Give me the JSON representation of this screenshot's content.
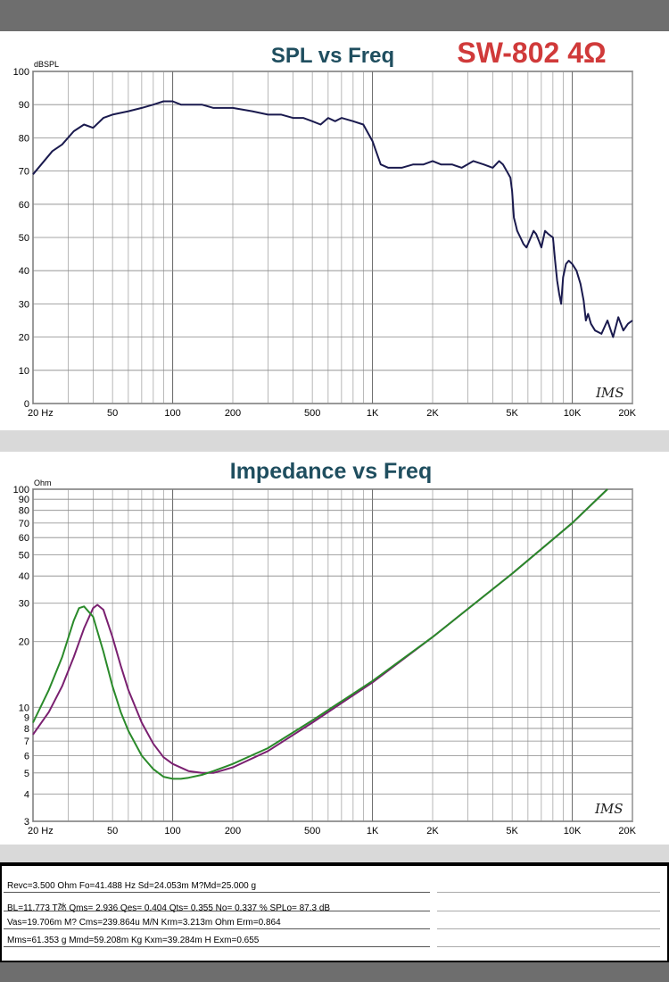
{
  "charts": {
    "spl": {
      "title": "SPL vs Freq",
      "model": "SW-802 4Ω",
      "unit": "dBSPL",
      "watermark": "IMS"
    },
    "impedance": {
      "title": "Impedance vs Freq",
      "unit": "Ohm",
      "watermark": "IMS"
    }
  },
  "params": {
    "line1": "Revc=3.500 Ohm  Fo=41.488 Hz  Sd=24.053m M?Md=25.000 g",
    "line2": "BL=11.773 T氹  Qms= 2.936  Qes= 0.404  Qts= 0.355  No= 0.337 %  SPLo= 87.3 dB",
    "line3": "Vas=19.706m M? Cms=239.864u M/N  Krm=3.213m Ohm  Erm=0.864",
    "line4": "Mms=61.353 g  Mmd=59.208m Kg  Kxm=39.284m H  Exm=0.655"
  },
  "colors": {
    "spl_curve": "#1a1a4e",
    "impedance_purple": "#7a2070",
    "impedance_green": "#2a8a2a",
    "title": "#1f4e5f",
    "model": "#d03a3a"
  },
  "chart_data": [
    {
      "type": "line",
      "title": "SPL vs Freq",
      "ylabel": "dBSPL",
      "xscale": "log",
      "xlim": [
        20,
        20000
      ],
      "ylim": [
        0,
        100
      ],
      "grid": true,
      "x_ticks": [
        "20 Hz",
        "50",
        "100",
        "200",
        "500",
        "1K",
        "2K",
        "5K",
        "10K",
        "20K"
      ],
      "y_ticks": [
        "0",
        "10",
        "20",
        "30",
        "40",
        "50",
        "60",
        "70",
        "80",
        "90",
        "100"
      ],
      "series": [
        {
          "x": [
            20,
            22,
            25,
            28,
            32,
            36,
            40,
            45,
            50,
            60,
            70,
            80,
            90,
            100,
            110,
            120,
            140,
            160,
            180,
            200,
            250,
            300,
            350,
            400,
            450,
            500,
            550,
            600,
            650,
            700,
            800,
            900,
            1000,
            1100,
            1200,
            1300,
            1400,
            1600,
            1800,
            2000,
            2200,
            2500,
            2800,
            3200,
            3600,
            4000,
            4300,
            4500,
            4700,
            4900,
            5000,
            5100,
            5200,
            5300,
            5500,
            5700,
            5900,
            6000,
            6200,
            6400,
            6600,
            6800,
            7000,
            7300,
            7600,
            8000,
            8200,
            8400,
            8600,
            8800,
            9000,
            9300,
            9600,
            10000,
            10500,
            11000,
            11400,
            11700,
            12000,
            12400,
            13000,
            14000,
            15000,
            16000,
            17000,
            18000,
            19000,
            20000
          ],
          "y": [
            69,
            72,
            76,
            78,
            82,
            84,
            83,
            86,
            87,
            88,
            89,
            90,
            91,
            91,
            90,
            90,
            90,
            89,
            89,
            89,
            88,
            87,
            87,
            86,
            86,
            85,
            84,
            86,
            85,
            86,
            85,
            84,
            79,
            72,
            71,
            71,
            71,
            72,
            72,
            73,
            72,
            72,
            71,
            73,
            72,
            71,
            73,
            72,
            70,
            68,
            64,
            56,
            54,
            52,
            50,
            48,
            47,
            48,
            50,
            52,
            51,
            49,
            47,
            52,
            51,
            50,
            43,
            37,
            33,
            30,
            38,
            42,
            43,
            42,
            40,
            36,
            31,
            25,
            27,
            24,
            22,
            21,
            25,
            20,
            26,
            22,
            24,
            25
          ]
        }
      ]
    },
    {
      "type": "line",
      "title": "Impedance vs Freq",
      "ylabel": "Ohm",
      "xscale": "log",
      "yscale": "log",
      "xlim": [
        20,
        20000
      ],
      "ylim": [
        3,
        100
      ],
      "grid": true,
      "x_ticks": [
        "20 Hz",
        "50",
        "100",
        "200",
        "500",
        "1K",
        "2K",
        "5K",
        "10K",
        "20K"
      ],
      "y_ticks": [
        "3",
        "4",
        "5",
        "6",
        "7",
        "8",
        "9",
        "10",
        "20",
        "30",
        "40",
        "50",
        "60",
        "70",
        "80",
        "90",
        "100"
      ],
      "series": [
        {
          "color": "purple",
          "x": [
            20,
            24,
            28,
            32,
            36,
            40,
            42,
            45,
            50,
            55,
            60,
            70,
            80,
            90,
            100,
            120,
            140,
            160,
            200,
            300,
            500,
            1000,
            2000,
            5000,
            10000,
            15000
          ],
          "y": [
            7.5,
            9.5,
            12.5,
            17,
            23,
            28.5,
            29.5,
            28,
            21,
            15.5,
            12,
            8.5,
            6.8,
            5.9,
            5.5,
            5.1,
            5.0,
            5.0,
            5.3,
            6.3,
            8.5,
            13,
            21,
            41,
            70,
            100
          ]
        },
        {
          "color": "green",
          "x": [
            20,
            24,
            28,
            32,
            34,
            36,
            40,
            45,
            50,
            55,
            60,
            70,
            80,
            90,
            100,
            110,
            120,
            140,
            160,
            200,
            300,
            500,
            1000,
            2000,
            5000,
            10000,
            15000
          ],
          "y": [
            8.5,
            12,
            17,
            25,
            28.5,
            29,
            26,
            18,
            12.5,
            9.5,
            7.8,
            6.0,
            5.2,
            4.8,
            4.7,
            4.7,
            4.75,
            4.9,
            5.1,
            5.5,
            6.5,
            8.7,
            13.2,
            21,
            41,
            70,
            100
          ]
        }
      ]
    }
  ]
}
